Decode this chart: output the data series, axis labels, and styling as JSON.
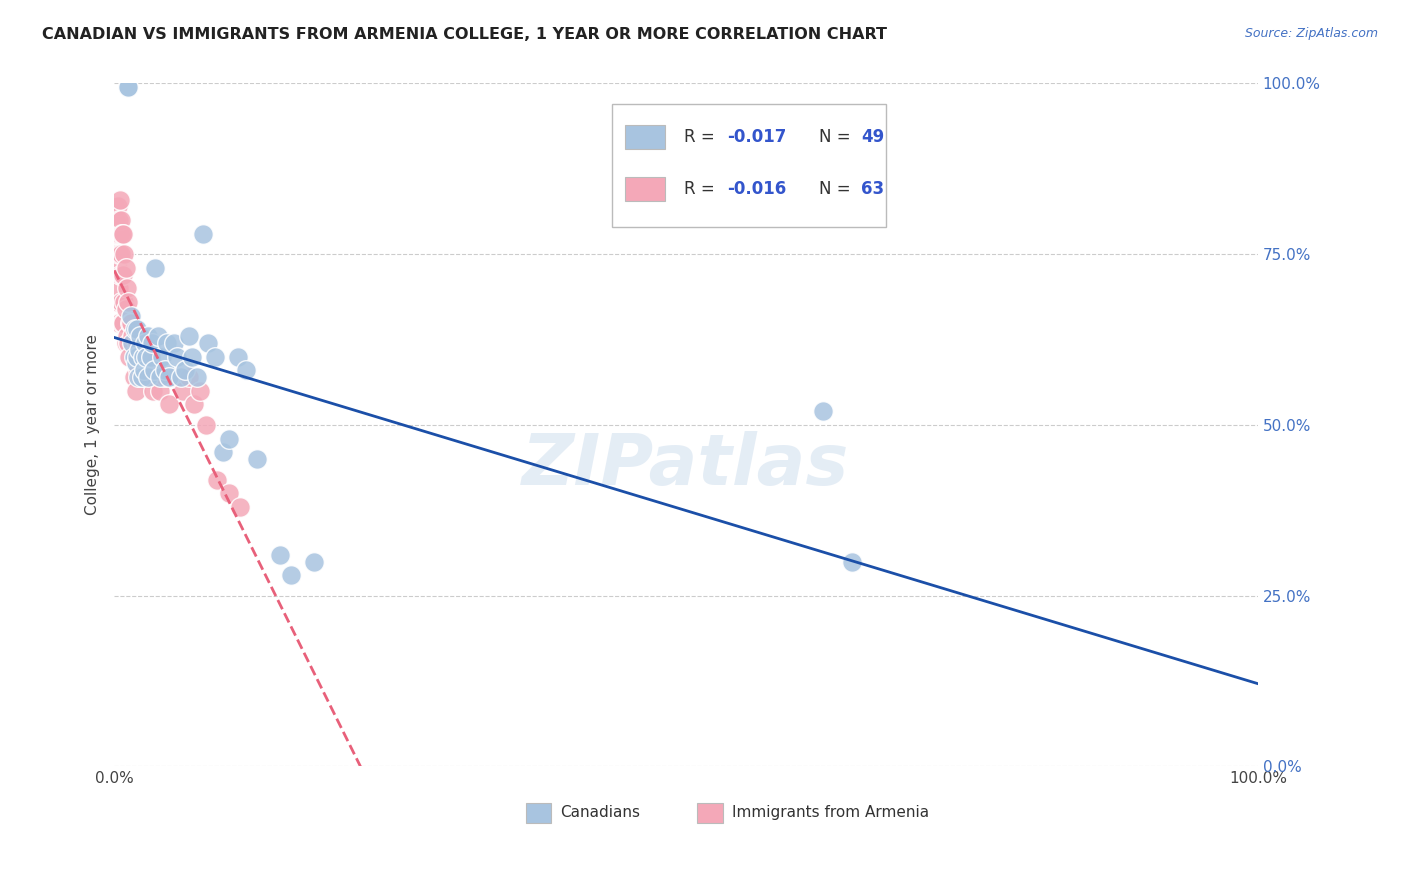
{
  "title": "CANADIAN VS IMMIGRANTS FROM ARMENIA COLLEGE, 1 YEAR OR MORE CORRELATION CHART",
  "source": "Source: ZipAtlas.com",
  "ylabel": "College, 1 year or more",
  "xlim": [
    0,
    1
  ],
  "ylim": [
    0,
    1
  ],
  "ytick_values": [
    0.0,
    0.25,
    0.5,
    0.75,
    1.0
  ],
  "canadian_color": "#a8c4e0",
  "armenia_color": "#f4a8b8",
  "canadian_line_color": "#1b4fa8",
  "armenia_line_color": "#e8607a",
  "background_color": "#ffffff",
  "grid_color": "#cccccc",
  "watermark": "ZIPatlas",
  "canadians_x": [
    0.012,
    0.012,
    0.015,
    0.016,
    0.017,
    0.018,
    0.019,
    0.02,
    0.02,
    0.021,
    0.022,
    0.023,
    0.024,
    0.025,
    0.026,
    0.027,
    0.028,
    0.03,
    0.03,
    0.032,
    0.033,
    0.035,
    0.036,
    0.038,
    0.04,
    0.042,
    0.044,
    0.046,
    0.048,
    0.052,
    0.055,
    0.058,
    0.062,
    0.065,
    0.068,
    0.072,
    0.078,
    0.082,
    0.088,
    0.095,
    0.1,
    0.108,
    0.115,
    0.125,
    0.145,
    0.155,
    0.175,
    0.62,
    0.645
  ],
  "canadians_y": [
    0.995,
    0.995,
    0.66,
    0.62,
    0.6,
    0.64,
    0.59,
    0.6,
    0.64,
    0.57,
    0.61,
    0.63,
    0.57,
    0.6,
    0.58,
    0.62,
    0.6,
    0.57,
    0.63,
    0.6,
    0.62,
    0.58,
    0.73,
    0.63,
    0.57,
    0.6,
    0.58,
    0.62,
    0.57,
    0.62,
    0.6,
    0.57,
    0.58,
    0.63,
    0.6,
    0.57,
    0.78,
    0.62,
    0.6,
    0.46,
    0.48,
    0.6,
    0.58,
    0.45,
    0.31,
    0.28,
    0.3,
    0.52,
    0.3
  ],
  "armenia_x": [
    0.001,
    0.001,
    0.001,
    0.002,
    0.002,
    0.003,
    0.003,
    0.003,
    0.003,
    0.004,
    0.004,
    0.004,
    0.004,
    0.005,
    0.005,
    0.005,
    0.006,
    0.006,
    0.006,
    0.007,
    0.007,
    0.007,
    0.008,
    0.008,
    0.008,
    0.009,
    0.009,
    0.01,
    0.01,
    0.01,
    0.011,
    0.011,
    0.012,
    0.012,
    0.013,
    0.014,
    0.015,
    0.016,
    0.017,
    0.018,
    0.019,
    0.02,
    0.021,
    0.022,
    0.023,
    0.025,
    0.027,
    0.03,
    0.032,
    0.034,
    0.036,
    0.04,
    0.044,
    0.048,
    0.052,
    0.06,
    0.065,
    0.07,
    0.075,
    0.08,
    0.09,
    0.1,
    0.11
  ],
  "armenia_y": [
    0.82,
    0.78,
    0.72,
    0.8,
    0.75,
    0.82,
    0.78,
    0.73,
    0.68,
    0.8,
    0.75,
    0.7,
    0.65,
    0.83,
    0.78,
    0.72,
    0.8,
    0.75,
    0.68,
    0.78,
    0.72,
    0.65,
    0.78,
    0.72,
    0.65,
    0.75,
    0.68,
    0.73,
    0.67,
    0.62,
    0.7,
    0.63,
    0.68,
    0.62,
    0.6,
    0.65,
    0.65,
    0.63,
    0.57,
    0.6,
    0.55,
    0.62,
    0.58,
    0.63,
    0.57,
    0.6,
    0.57,
    0.6,
    0.57,
    0.55,
    0.58,
    0.55,
    0.57,
    0.53,
    0.57,
    0.55,
    0.57,
    0.53,
    0.55,
    0.5,
    0.42,
    0.4,
    0.38
  ]
}
